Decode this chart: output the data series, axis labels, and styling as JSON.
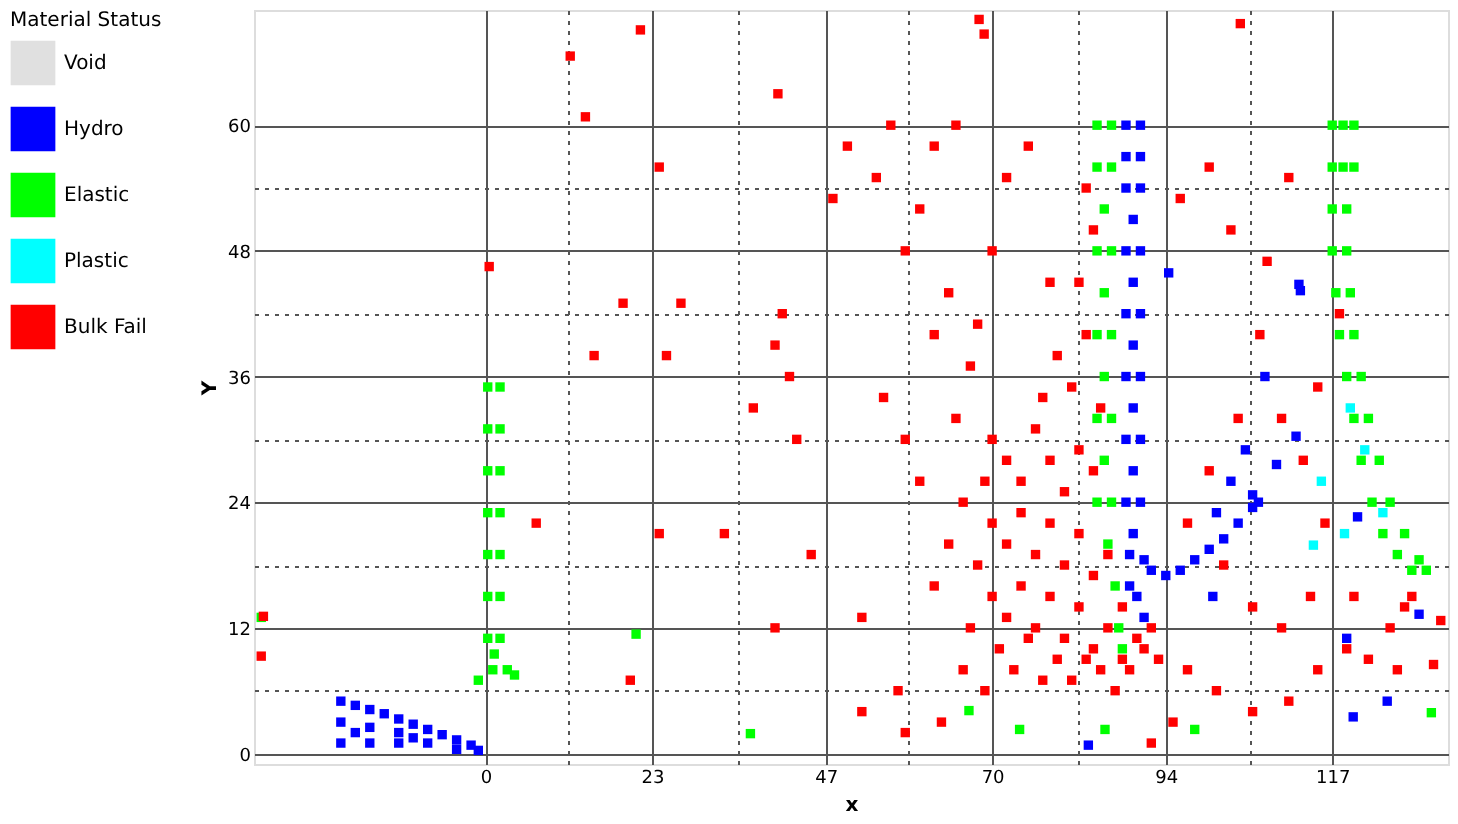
{
  "chart_data": {
    "type": "scatter",
    "xlabel": "x",
    "ylabel": "Y",
    "legend_title": "Material Status",
    "legend": "left",
    "marker": "square",
    "grid": true,
    "xlim": [
      -32,
      133
    ],
    "ylim": [
      -1,
      71
    ],
    "xticks": [
      0,
      {
        "value": 11.5,
        "label": null
      },
      23,
      {
        "value": 35,
        "label": null
      },
      47,
      {
        "value": 58.5,
        "label": null
      },
      70,
      {
        "value": 82,
        "label": null
      },
      94,
      {
        "value": 105.5,
        "label": null
      },
      117
    ],
    "yticks": [
      0,
      {
        "value": 6,
        "label": null
      },
      12,
      {
        "value": 18,
        "label": null
      },
      24,
      {
        "value": 30,
        "label": null
      },
      36,
      {
        "value": 42,
        "label": null
      },
      48,
      {
        "value": 54,
        "label": null
      },
      60
    ],
    "series": [
      {
        "name": "Void",
        "color": "#e0e0e0"
      },
      {
        "name": "Hydro",
        "color": "#0000ff",
        "x": [
          88.5,
          90.5,
          88.5,
          90.5,
          88.5,
          90.5,
          89.5,
          88.5,
          90.5,
          89.5,
          88.5,
          90.5,
          89.5,
          88.5,
          90.5,
          89.5,
          88.5,
          90.5,
          89.5,
          88.5,
          90.5,
          89.5,
          89,
          91,
          92,
          94,
          96,
          98,
          100,
          102,
          104,
          106,
          101,
          103,
          105,
          89,
          90,
          91,
          -20,
          -20,
          -20,
          -18,
          -16,
          -14,
          -12,
          -10,
          -8,
          -6,
          -4,
          -2,
          -16,
          -12,
          -8,
          -16,
          -12,
          -10,
          -18,
          -4,
          -1,
          112.6,
          106.8,
          100.5,
          94.4,
          112.4,
          107.7,
          112,
          109.3,
          120.5,
          129,
          119,
          124.6,
          119.9,
          83.3,
          106
        ],
        "values": [
          60,
          60,
          57,
          57,
          54,
          54,
          51,
          48,
          48,
          45,
          42,
          42,
          39,
          36,
          36,
          33,
          30,
          30,
          27,
          24,
          24,
          21,
          19,
          18.5,
          17.5,
          17,
          17.5,
          18.5,
          19.5,
          20.5,
          22,
          23.5,
          23,
          26,
          29,
          16,
          15,
          13,
          5,
          3,
          1,
          4.6,
          4.2,
          3.8,
          3.3,
          2.8,
          2.3,
          1.8,
          1.3,
          0.8,
          1,
          1,
          1,
          2.5,
          2,
          1.5,
          2,
          0.4,
          0.3,
          44.2,
          24,
          15,
          45.9,
          44.8,
          36,
          30.3,
          27.6,
          22.6,
          13.3,
          11,
          5,
          3.5,
          0.8,
          24.7
        ]
      },
      {
        "name": "Elastic",
        "color": "#00ff00",
        "x": [
          0.3,
          2,
          0.3,
          2,
          0.3,
          2,
          0.3,
          2,
          0.3,
          2,
          0.3,
          2,
          0.3,
          2,
          1,
          3,
          -1,
          4,
          1.2,
          84.5,
          86.5,
          84.5,
          86.5,
          85.5,
          84.5,
          86.5,
          85.5,
          84.5,
          86.5,
          85.5,
          84.5,
          86.5,
          85.5,
          84.5,
          86.5,
          86,
          87,
          87.5,
          88,
          117,
          118.5,
          120,
          117,
          118.5,
          120,
          117,
          119,
          117,
          119,
          117.5,
          119.5,
          118,
          120,
          119,
          121,
          120,
          122,
          121,
          123.5,
          122.5,
          125,
          124,
          127,
          126,
          129,
          128,
          130,
          36.6,
          66.8,
          73.8,
          85.6,
          98,
          130.7,
          20.8,
          -31
        ],
        "values": [
          35,
          35,
          31,
          31,
          27,
          27,
          23,
          23,
          19,
          19,
          15,
          15,
          11,
          11,
          8,
          8,
          7,
          7.5,
          9.5,
          60,
          60,
          56,
          56,
          52,
          48,
          48,
          44,
          40,
          40,
          36,
          32,
          32,
          28,
          24,
          24,
          20,
          16,
          12,
          10,
          60,
          60,
          60,
          56,
          56,
          56,
          52,
          52,
          48,
          48,
          44,
          44,
          40,
          40,
          36,
          36,
          32,
          32,
          28,
          28,
          24,
          24,
          21,
          21,
          19,
          18.5,
          17.5,
          17.5,
          1.9,
          4.1,
          2.3,
          2.3,
          2.3,
          3.9,
          11.4,
          13
        ]
      },
      {
        "name": "Plastic",
        "color": "#00ffff",
        "x": [
          114.4,
          118.7,
          115.5,
          119.5,
          121.5,
          124
        ],
        "values": [
          19.9,
          21,
          26,
          33,
          29,
          23
        ]
      },
      {
        "name": "Bulk Fail",
        "color": "#ff0000",
        "x": [
          11.7,
          21.4,
          40.4,
          68.2,
          68.9,
          104.3,
          13.8,
          -30.7,
          -31,
          132,
          131,
          126,
          128,
          0.5,
          24,
          19,
          27,
          15,
          25,
          41,
          40,
          42,
          37,
          43,
          33,
          45,
          24,
          7,
          20,
          40,
          52,
          52,
          57,
          58,
          63,
          66,
          50,
          54,
          56,
          62,
          65,
          58,
          48,
          60,
          64,
          62,
          67,
          55,
          58,
          60,
          65,
          68,
          70,
          72,
          75,
          78,
          70,
          72,
          74,
          76,
          78,
          80,
          82,
          84,
          70,
          72,
          74,
          76,
          78,
          80,
          82,
          84,
          86,
          68,
          70,
          72,
          74,
          76,
          78,
          80,
          82,
          84,
          86,
          88,
          71,
          73,
          75,
          77,
          79,
          81,
          83,
          85,
          87,
          89,
          91,
          93,
          81,
          83,
          82,
          84,
          83,
          85,
          79,
          77,
          69,
          66,
          64,
          62,
          67,
          69,
          90,
          92,
          88,
          96,
          100,
          103,
          108,
          111,
          107,
          104,
          110,
          113,
          115,
          100,
          97,
          102,
          106,
          110,
          114,
          116,
          115,
          111,
          106,
          101,
          97,
          95,
          92,
          119,
          122,
          125,
          118,
          120,
          127
        ],
        "values": [
          66.6,
          69.1,
          63,
          70.1,
          68.7,
          69.7,
          60.8,
          13.1,
          9.3,
          12.7,
          8.5,
          8,
          15,
          46.5,
          56,
          43,
          43,
          38,
          38,
          42,
          39,
          36,
          33,
          30,
          21,
          19,
          21,
          22,
          7,
          12,
          13,
          4,
          6,
          2,
          3,
          8,
          58,
          55,
          60,
          58,
          60,
          48,
          53,
          52,
          44,
          40,
          37,
          34,
          30,
          26,
          32,
          41,
          48,
          55,
          58,
          45,
          30,
          28,
          26,
          31,
          28,
          25,
          29,
          27,
          22,
          20,
          23,
          19,
          22,
          18,
          21,
          17,
          19,
          18,
          15,
          13,
          16,
          12,
          15,
          11,
          14,
          10,
          12,
          9,
          10,
          8,
          11,
          7,
          9,
          7,
          9,
          8,
          6,
          8,
          10,
          9,
          35,
          40,
          45,
          50,
          54,
          33,
          38,
          34,
          26,
          24,
          20,
          16,
          12,
          6,
          11,
          12,
          14,
          53,
          56,
          50,
          47,
          55,
          40,
          32,
          32,
          28,
          35,
          27,
          22,
          18,
          14,
          12,
          15,
          22,
          8,
          5,
          4,
          6,
          8,
          3,
          1,
          10,
          9,
          12,
          42,
          15,
          14
        ]
      }
    ]
  }
}
